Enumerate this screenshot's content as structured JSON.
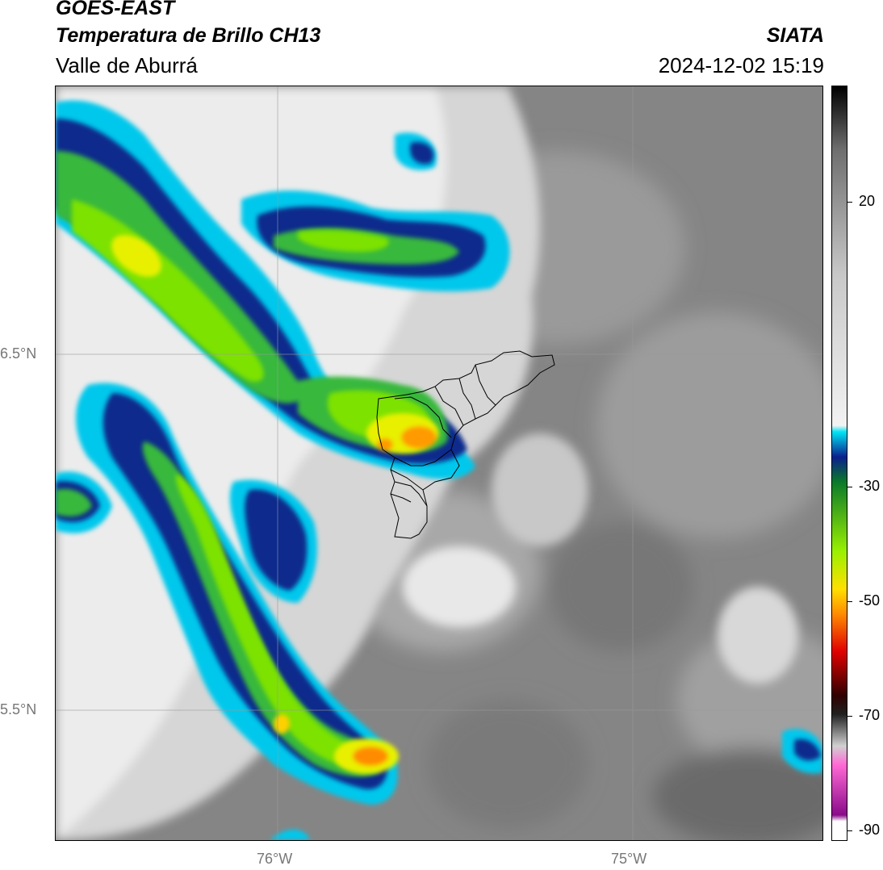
{
  "header": {
    "satellite": "GOES-EAST",
    "product": "Temperatura de Brillo CH13",
    "region": "Valle de Aburrá",
    "brand": "SIATA",
    "datetime": "2024-12-02 15:19"
  },
  "axes": {
    "lat_labels": [
      "6.5°N",
      "5.5°N"
    ],
    "lon_labels": [
      "76°W",
      "75°W"
    ]
  },
  "colorbar": {
    "tick_labels": [
      "20",
      "-30",
      "-50",
      "-70",
      "-90"
    ],
    "stops": [
      {
        "value": 30,
        "color": "#000000"
      },
      {
        "value": 20,
        "color": "#6e6e6e"
      },
      {
        "value": 0,
        "color": "#c8c8c8"
      },
      {
        "value": -24,
        "color": "#f2f2f2"
      },
      {
        "value": -25,
        "color": "#00e5f5"
      },
      {
        "value": -29,
        "color": "#0a1f8c"
      },
      {
        "value": -33,
        "color": "#0a7a2a"
      },
      {
        "value": -44,
        "color": "#9af000"
      },
      {
        "value": -50,
        "color": "#ffe000"
      },
      {
        "value": -54,
        "color": "#ff8c00"
      },
      {
        "value": -60,
        "color": "#e00000"
      },
      {
        "value": -67,
        "color": "#300000"
      },
      {
        "value": -70,
        "color": "#202020"
      },
      {
        "value": -75,
        "color": "#d0d0d0"
      },
      {
        "value": -78,
        "color": "#ff6ad5"
      },
      {
        "value": -86,
        "color": "#8a0a8a"
      },
      {
        "value": -87,
        "color": "#ffffff"
      },
      {
        "value": -90,
        "color": "#ffffff"
      }
    ]
  },
  "colors": {
    "cold_core": "#ffe000",
    "convective": "#6fd400",
    "cloud_edge_dark": "#0a1f8c",
    "cloud_edge_light": "#00d0f0",
    "warm_surface": "#8a8a8a",
    "mid_cloud": "#e6e6e6"
  }
}
